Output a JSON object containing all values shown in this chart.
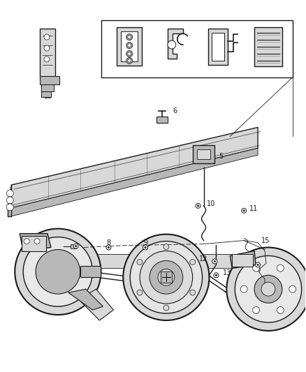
{
  "background_color": "#ffffff",
  "fig_width": 4.38,
  "fig_height": 5.33,
  "dpi": 100,
  "line_color": "#1a1a1a",
  "label_fontsize": 7.0,
  "gray_light": "#d8d8d8",
  "gray_med": "#b8b8b8",
  "gray_dark": "#888888"
}
